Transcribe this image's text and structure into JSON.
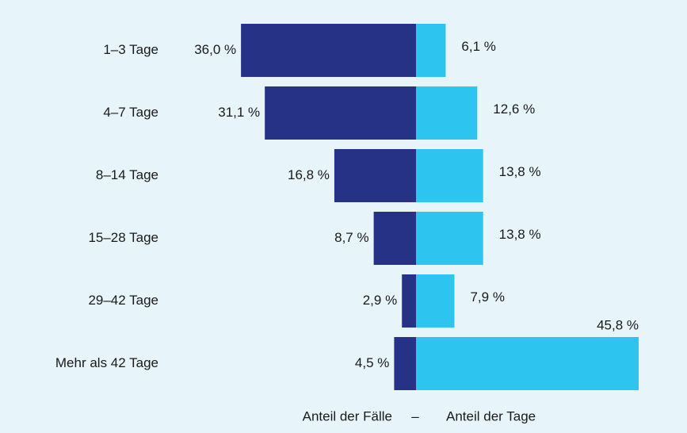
{
  "chart_data": {
    "type": "diverging-bar",
    "categories": [
      "1–3 Tage",
      "4–7 Tage",
      "8–14 Tage",
      "15–28 Tage",
      "29–42 Tage",
      "Mehr als 42 Tage"
    ],
    "series": [
      {
        "name": "Anteil der Fälle",
        "color": "#263285",
        "values": [
          36.0,
          31.1,
          16.8,
          8.7,
          2.9,
          4.5
        ],
        "value_labels": [
          "36,0 %",
          "31,1 %",
          "16,8 %",
          "8,7 %",
          "2,9 %",
          "4,5 %"
        ]
      },
      {
        "name": "Anteil der Tage",
        "color": "#2ec4f0",
        "values": [
          6.1,
          12.6,
          13.8,
          13.8,
          7.9,
          45.8
        ],
        "value_labels": [
          "6,1 %",
          "12,6 %",
          "13,8 %",
          "13,8 %",
          "7,9 %",
          "45,8 %"
        ]
      }
    ],
    "legend_separator": "–"
  }
}
